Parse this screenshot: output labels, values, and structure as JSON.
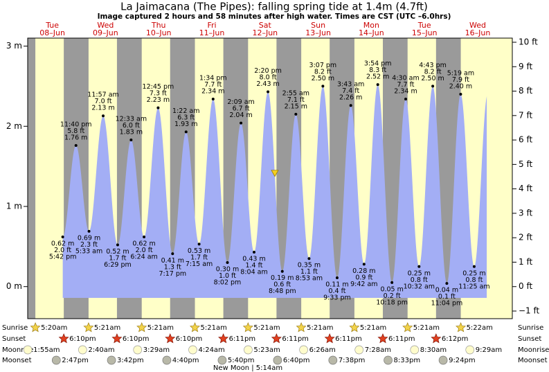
{
  "chart_data": {
    "type": "tide",
    "title": "La Jaimacana (The Pipes): falling  spring tide at 1.4m (4.7ft)",
    "subtitle": "Image captured 2 hours and 58 minutes after high water. Times are CST (UTC –6.0hrs)",
    "color": "#a3aef5",
    "day_color": "#ffffc8",
    "night_color": "#9a9a9a",
    "ylim": [
      -0.4,
      3.1
    ],
    "yticks": [
      {
        "value": 0,
        "label": "0 m"
      },
      {
        "value": 1,
        "label": "1 m"
      },
      {
        "value": 2,
        "label": "2 m"
      },
      {
        "value": 3,
        "label": "3 m"
      }
    ],
    "y2lim": [
      -1.312,
      10.17
    ],
    "y2ticks": [
      {
        "value": -1,
        "label": "−1 ft"
      },
      {
        "value": 0,
        "label": "0 ft"
      },
      {
        "value": 1,
        "label": "1 ft"
      },
      {
        "value": 2,
        "label": "2 ft"
      },
      {
        "value": 3,
        "label": "3 ft"
      },
      {
        "value": 4,
        "label": "4 ft"
      },
      {
        "value": 5,
        "label": "5 ft"
      },
      {
        "value": 6,
        "label": "6 ft"
      },
      {
        "value": 7,
        "label": "7 ft"
      },
      {
        "value": 8,
        "label": "8 ft"
      },
      {
        "value": 9,
        "label": "9 ft"
      },
      {
        "value": 10,
        "label": "10 ft"
      }
    ],
    "current_level": 1.4,
    "row_labels": {
      "sunrise": "Sunrise",
      "sunset": "Sunset",
      "moonrise": "Moonrise",
      "moonset": "Moonset"
    },
    "moon_phase": "New Moon | 5:14am",
    "days": [
      {
        "weekday": "Tue",
        "date": "08–Jun",
        "sunrise": "5:20am",
        "sunset": "6:10pm",
        "moonrise": "1:55am",
        "moonset": "2:47pm",
        "tides": [
          {
            "time": "5:42 pm",
            "m": 0.62,
            "m_label": "0.62 m",
            "ft_label": "2.0 ft"
          },
          {
            "time": "11:40 pm",
            "m": 1.76,
            "m_label": "1.76 m",
            "ft_label": "5.8 ft"
          }
        ]
      },
      {
        "weekday": "Wed",
        "date": "09–Jun",
        "sunrise": "5:21am",
        "sunset": "6:10pm",
        "moonrise": "2:40am",
        "moonset": "3:42pm",
        "tides": [
          {
            "time": "5:33 am",
            "m": 0.69,
            "m_label": "0.69 m",
            "ft_label": "2.3 ft"
          },
          {
            "time": "11:57 am",
            "m": 2.13,
            "m_label": "2.13 m",
            "ft_label": "7.0 ft"
          },
          {
            "time": "6:29 pm",
            "m": 0.52,
            "m_label": "0.52 m",
            "ft_label": "1.7 ft"
          }
        ]
      },
      {
        "weekday": "Thu",
        "date": "10–Jun",
        "sunrise": "5:21am",
        "sunset": "6:10pm",
        "moonrise": "3:29am",
        "moonset": "4:40pm",
        "tides": [
          {
            "time": "12:33 am",
            "m": 1.83,
            "m_label": "1.83 m",
            "ft_label": "6.0 ft"
          },
          {
            "time": "6:24 am",
            "m": 0.62,
            "m_label": "0.62 m",
            "ft_label": "2.0 ft"
          },
          {
            "time": "12:45 pm",
            "m": 2.23,
            "m_label": "2.23 m",
            "ft_label": "7.3 ft"
          },
          {
            "time": "7:17 pm",
            "m": 0.41,
            "m_label": "0.41 m",
            "ft_label": "1.3 ft"
          }
        ]
      },
      {
        "weekday": "Fri",
        "date": "11–Jun",
        "sunrise": "5:21am",
        "sunset": "6:11pm",
        "moonrise": "4:24am",
        "moonset": "5:40pm",
        "tides": [
          {
            "time": "1:22 am",
            "m": 1.93,
            "m_label": "1.93 m",
            "ft_label": "6.3 ft"
          },
          {
            "time": "7:15 am",
            "m": 0.53,
            "m_label": "0.53 m",
            "ft_label": "1.7 ft"
          },
          {
            "time": "1:34 pm",
            "m": 2.34,
            "m_label": "2.34 m",
            "ft_label": "7.7 ft"
          },
          {
            "time": "8:02 pm",
            "m": 0.3,
            "m_label": "0.30 m",
            "ft_label": "1.0 ft"
          }
        ]
      },
      {
        "weekday": "Sat",
        "date": "12–Jun",
        "sunrise": "5:21am",
        "sunset": "6:11pm",
        "moonrise": "5:23am",
        "moonset": "6:40pm",
        "tides": [
          {
            "time": "2:09 am",
            "m": 2.04,
            "m_label": "2.04 m",
            "ft_label": "6.7 ft"
          },
          {
            "time": "8:04 am",
            "m": 0.43,
            "m_label": "0.43 m",
            "ft_label": "1.4 ft"
          },
          {
            "time": "2:20 pm",
            "m": 2.43,
            "m_label": "2.43 m",
            "ft_label": "8.0 ft"
          },
          {
            "time": "8:48 pm",
            "m": 0.19,
            "m_label": "0.19 m",
            "ft_label": "0.6 ft"
          }
        ]
      },
      {
        "weekday": "Sun",
        "date": "13–Jun",
        "sunrise": "5:21am",
        "sunset": "6:11pm",
        "moonrise": "6:26am",
        "moonset": "7:38pm",
        "tides": [
          {
            "time": "2:55 am",
            "m": 2.15,
            "m_label": "2.15 m",
            "ft_label": "7.1 ft"
          },
          {
            "time": "8:53 am",
            "m": 0.35,
            "m_label": "0.35 m",
            "ft_label": "1.1 ft"
          },
          {
            "time": "3:07 pm",
            "m": 2.5,
            "m_label": "2.50 m",
            "ft_label": "8.2 ft"
          },
          {
            "time": "9:33 pm",
            "m": 0.11,
            "m_label": "0.11 m",
            "ft_label": "0.4 ft"
          }
        ]
      },
      {
        "weekday": "Mon",
        "date": "14–Jun",
        "sunrise": "5:21am",
        "sunset": "6:11pm",
        "moonrise": "7:28am",
        "moonset": "8:33pm",
        "tides": [
          {
            "time": "3:43 am",
            "m": 2.26,
            "m_label": "2.26 m",
            "ft_label": "7.4 ft"
          },
          {
            "time": "9:42 am",
            "m": 0.28,
            "m_label": "0.28 m",
            "ft_label": "0.9 ft"
          },
          {
            "time": "3:54 pm",
            "m": 2.52,
            "m_label": "2.52 m",
            "ft_label": "8.3 ft"
          },
          {
            "time": "10:18 pm",
            "m": 0.05,
            "m_label": "0.05 m",
            "ft_label": "0.2 ft"
          }
        ]
      },
      {
        "weekday": "Tue",
        "date": "15–Jun",
        "sunrise": "5:21am",
        "sunset": "6:12pm",
        "moonrise": "8:30am",
        "moonset": "9:24pm",
        "tides": [
          {
            "time": "4:30 am",
            "m": 2.34,
            "m_label": "2.34 m",
            "ft_label": "7.7 ft"
          },
          {
            "time": "10:32 am",
            "m": 0.25,
            "m_label": "0.25 m",
            "ft_label": "0.8 ft"
          },
          {
            "time": "4:43 pm",
            "m": 2.5,
            "m_label": "2.50 m",
            "ft_label": "8.2 ft"
          },
          {
            "time": "11:04 pm",
            "m": 0.04,
            "m_label": "0.04 m",
            "ft_label": "0.1 ft"
          }
        ]
      },
      {
        "weekday": "Wed",
        "date": "16–Jun",
        "sunrise": "5:22am",
        "moonrise": "9:29am",
        "tides": [
          {
            "time": "5:19 am",
            "m": 2.4,
            "m_label": "2.40 m",
            "ft_label": "7.9 ft"
          },
          {
            "time": "11:25 am",
            "m": 0.25,
            "m_label": "0.25 m",
            "ft_label": "0.8 ft"
          }
        ]
      }
    ]
  }
}
